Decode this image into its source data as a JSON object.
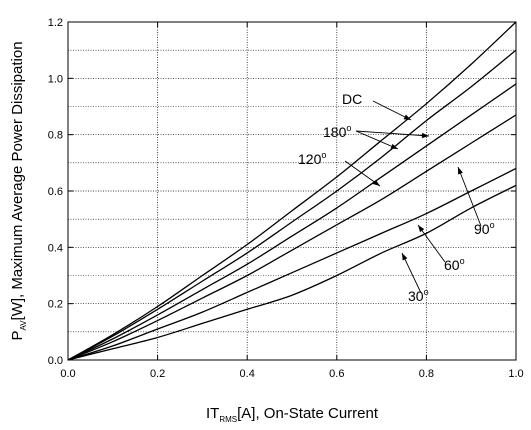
{
  "chart_data": {
    "type": "line",
    "xlabel": {
      "main": "IT",
      "sub": "RMS",
      "rest": "[A], On-State Current"
    },
    "ylabel": {
      "main": "P",
      "sub": "AV",
      "rest": "[W], Maximum Average Power Dissipation"
    },
    "xlim": [
      0.0,
      1.0
    ],
    "ylim": [
      0.0,
      1.2
    ],
    "xticks": [
      0.0,
      0.2,
      0.4,
      0.6,
      0.8,
      1.0
    ],
    "yticks": [
      0.0,
      0.2,
      0.4,
      0.6,
      0.8,
      1.0,
      1.2
    ],
    "xtick_labels": [
      "0.0",
      "0.2",
      "0.4",
      "0.6",
      "0.8",
      "1.0"
    ],
    "ytick_labels": [
      "0.0",
      "0.2",
      "0.4",
      "0.6",
      "0.8",
      "1.0",
      "1.2"
    ],
    "grid": true,
    "x": [
      0.0,
      0.1,
      0.2,
      0.3,
      0.4,
      0.5,
      0.6,
      0.7,
      0.8,
      0.9,
      1.0
    ],
    "series": [
      {
        "name": "DC",
        "values": [
          0.0,
          0.09,
          0.19,
          0.3,
          0.41,
          0.53,
          0.65,
          0.78,
          0.91,
          1.05,
          1.2
        ]
      },
      {
        "name": "180°",
        "values": [
          0.0,
          0.085,
          0.18,
          0.28,
          0.38,
          0.49,
          0.6,
          0.72,
          0.85,
          0.97,
          1.1
        ]
      },
      {
        "name": "120°",
        "values": [
          0.0,
          0.075,
          0.16,
          0.25,
          0.34,
          0.44,
          0.54,
          0.65,
          0.76,
          0.87,
          0.98
        ]
      },
      {
        "name": "90°",
        "values": [
          0.0,
          0.065,
          0.14,
          0.22,
          0.3,
          0.39,
          0.48,
          0.57,
          0.67,
          0.77,
          0.87
        ]
      },
      {
        "name": "60°",
        "values": [
          0.0,
          0.05,
          0.11,
          0.17,
          0.24,
          0.31,
          0.38,
          0.45,
          0.52,
          0.6,
          0.68
        ]
      },
      {
        "name": "30°",
        "values": [
          0.0,
          0.04,
          0.08,
          0.13,
          0.18,
          0.23,
          0.3,
          0.38,
          0.45,
          0.54,
          0.62
        ]
      }
    ],
    "annotations": [
      {
        "base": "DC",
        "deg": ""
      },
      {
        "base": "180",
        "deg": "o"
      },
      {
        "base": "120",
        "deg": "o"
      },
      {
        "base": "90",
        "deg": "o"
      },
      {
        "base": "60",
        "deg": "o"
      },
      {
        "base": "30",
        "deg": "o"
      }
    ]
  }
}
